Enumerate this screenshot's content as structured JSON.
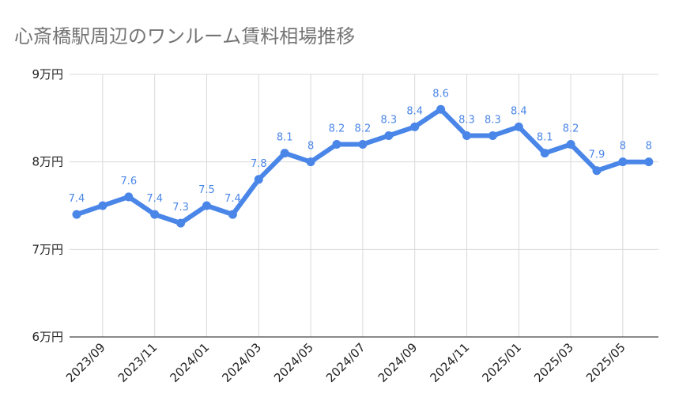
{
  "chart_data": {
    "type": "line",
    "title": "心斎橋駅周辺のワンルーム賃料相場推移",
    "xlabel": "",
    "ylabel": "",
    "x": [
      "2023/08",
      "2023/09",
      "2023/10",
      "2023/11",
      "2023/12",
      "2024/01",
      "2024/02",
      "2024/03",
      "2024/04",
      "2024/05",
      "2024/06",
      "2024/07",
      "2024/08",
      "2024/09",
      "2024/10",
      "2024/11",
      "2024/12",
      "2025/01",
      "2025/02",
      "2025/03",
      "2025/04",
      "2025/05",
      "2025/06"
    ],
    "x_tick_labels": [
      "2023/09",
      "2023/11",
      "2024/01",
      "2024/03",
      "2024/05",
      "2024/07",
      "2024/09",
      "2024/11",
      "2025/01",
      "2025/03",
      "2025/05"
    ],
    "values": [
      7.4,
      7.5,
      7.6,
      7.4,
      7.3,
      7.5,
      7.4,
      7.8,
      8.1,
      8.0,
      8.2,
      8.2,
      8.3,
      8.4,
      8.6,
      8.3,
      8.3,
      8.4,
      8.1,
      8.2,
      7.9,
      8.0,
      8.0
    ],
    "data_labels": [
      "7.4",
      "",
      "7.6",
      "7.4",
      "7.3",
      "7.5",
      "7.4",
      "7.8",
      "8.1",
      "8",
      "8.2",
      "8.2",
      "8.3",
      "8.4",
      "8.6",
      "8.3",
      "8.3",
      "8.4",
      "8.1",
      "8.2",
      "7.9",
      "8",
      "8"
    ],
    "ylim": [
      6,
      9
    ],
    "y_ticks": [
      6,
      7,
      8,
      9
    ],
    "y_tick_labels": [
      "6万円",
      "7万円",
      "8万円",
      "9万円"
    ],
    "grid": true,
    "legend": "none",
    "line_color": "#4a86e8"
  }
}
